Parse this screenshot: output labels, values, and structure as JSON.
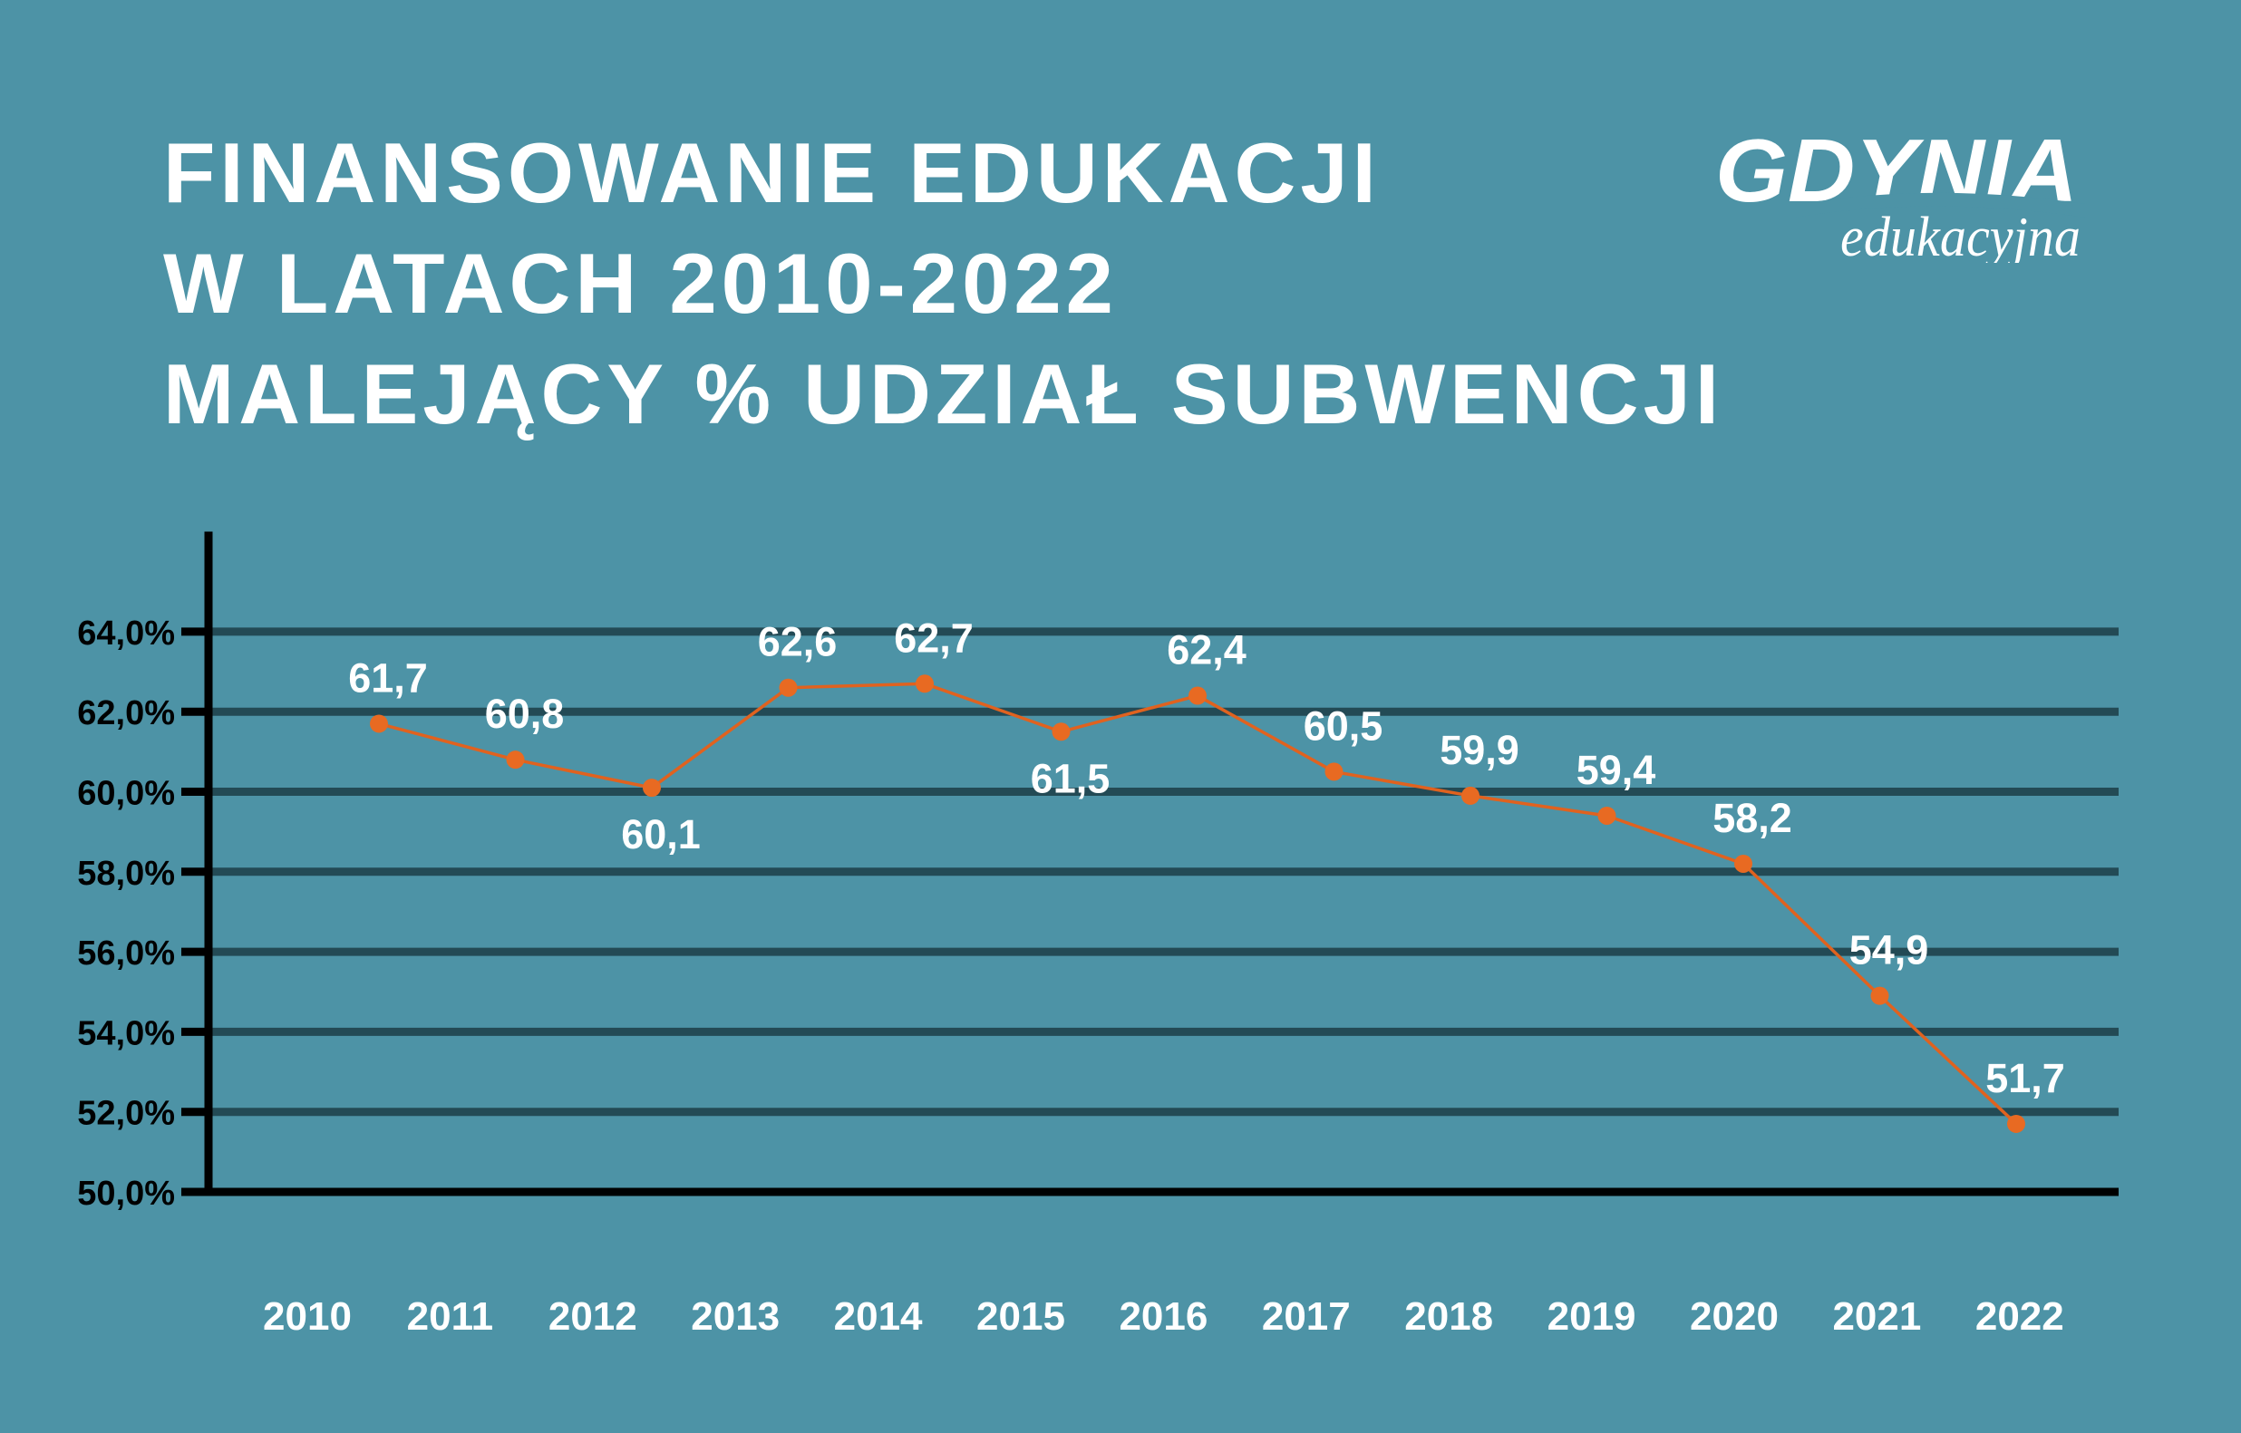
{
  "title_lines": [
    "FINANSOWANIE EDUKACJI",
    "W LATACH 2010-2022",
    "MALEJĄCY % UDZIAŁ SUBWENCJI"
  ],
  "logo": {
    "main": "GDYNIA",
    "sub": "edukacyjna"
  },
  "colors": {
    "background": "#4d93a6",
    "gridline": "#234a55",
    "axis": "#000000",
    "line": "#e0621f",
    "marker": "#e86a22",
    "text": "#ffffff"
  },
  "chart_data": {
    "type": "line",
    "categories": [
      "2010",
      "2011",
      "2012",
      "2013",
      "2014",
      "2015",
      "2016",
      "2017",
      "2018",
      "2019",
      "2020",
      "2021",
      "2022"
    ],
    "values": [
      61.7,
      60.8,
      60.1,
      62.6,
      62.7,
      61.5,
      62.4,
      60.5,
      59.9,
      59.4,
      58.2,
      54.9,
      51.7
    ],
    "data_labels": [
      "61,7",
      "60,8",
      "60,1",
      "62,6",
      "62,7",
      "61,5",
      "62,4",
      "60,5",
      "59,9",
      "59,4",
      "58,2",
      "54,9",
      "51,7"
    ],
    "label_position": [
      "above",
      "above",
      "below",
      "above",
      "above",
      "below",
      "above",
      "above",
      "above",
      "above",
      "above",
      "above",
      "above"
    ],
    "yticks": [
      50,
      52,
      54,
      56,
      58,
      60,
      62,
      64
    ],
    "ytick_labels": [
      "50,0%",
      "52,0%",
      "54,0%",
      "56,0%",
      "58,0%",
      "60,0%",
      "62,0%",
      "64,0%"
    ],
    "ylim": [
      50,
      66.5
    ],
    "grid": true,
    "legend": "none"
  }
}
